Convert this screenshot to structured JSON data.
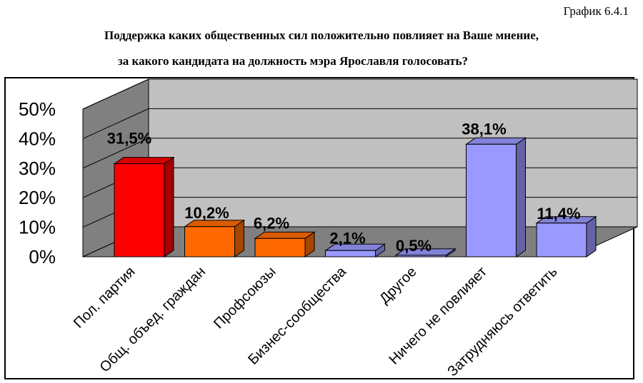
{
  "header": {
    "caption": "График 6.4.1",
    "title_line1": "Поддержка каких общественных сил положительно повлияет на Ваше мнение,",
    "title_line2": "за какого кандидата на должность мэра Ярославля голосовать?"
  },
  "chart_data": {
    "type": "bar",
    "categories": [
      "Пол. партия",
      "Общ. объед. граждан",
      "Профсоюзы",
      "Бизнес-сообщества",
      "Другое",
      "Ничего не повлияет",
      "Затрудняюсь ответить"
    ],
    "values": [
      31.5,
      10.2,
      6.2,
      2.1,
      0.5,
      38.1,
      11.4
    ],
    "value_labels": [
      "31,5%",
      "10,2%",
      "6,2%",
      "2,1%",
      "0,5%",
      "38,1%",
      "11,4%"
    ],
    "bar_colors": [
      "#ff0000",
      "#ff6a00",
      "#ff6a00",
      "#9999ff",
      "#9999ff",
      "#9999ff",
      "#9999ff"
    ],
    "y_ticks": [
      "0%",
      "10%",
      "20%",
      "30%",
      "40%",
      "50%"
    ],
    "ylim": [
      0,
      50
    ],
    "grid": true,
    "style": "3d-bar",
    "wall_color": "#c0c0c0"
  }
}
